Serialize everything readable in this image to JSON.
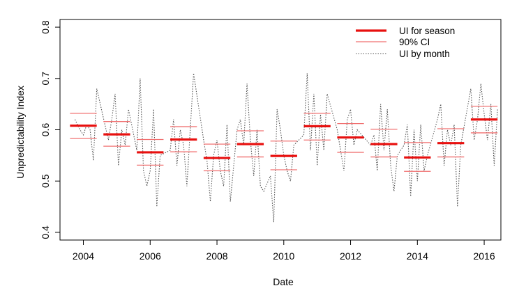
{
  "chart_data": {
    "type": "line",
    "title": "",
    "xlabel": "Date",
    "ylabel": "Unpredictability Index",
    "xlim": [
      2003.3,
      2016.5
    ],
    "ylim": [
      0.385,
      0.815
    ],
    "x_ticks": [
      2004,
      2006,
      2008,
      2010,
      2012,
      2014,
      2016
    ],
    "y_ticks": [
      0.4,
      0.5,
      0.6,
      0.7,
      0.8
    ],
    "legend": {
      "position": "top-right",
      "entries": [
        {
          "label": "UI for season",
          "style": "thick",
          "color": "#e8100f"
        },
        {
          "label": "90% CI",
          "style": "thin",
          "color": "#f07070"
        },
        {
          "label": "UI by month",
          "style": "dotted",
          "color": "#555555"
        }
      ]
    },
    "seasons": [
      {
        "start": 2003.6,
        "end": 2004.4,
        "ui": 0.608,
        "ci_low": 0.583,
        "ci_high": 0.632
      },
      {
        "start": 2004.6,
        "end": 2005.4,
        "ui": 0.591,
        "ci_low": 0.568,
        "ci_high": 0.616
      },
      {
        "start": 2005.6,
        "end": 2006.4,
        "ui": 0.556,
        "ci_low": 0.531,
        "ci_high": 0.581
      },
      {
        "start": 2006.6,
        "end": 2007.4,
        "ui": 0.581,
        "ci_low": 0.557,
        "ci_high": 0.606
      },
      {
        "start": 2007.6,
        "end": 2008.4,
        "ui": 0.545,
        "ci_low": 0.52,
        "ci_high": 0.572
      },
      {
        "start": 2008.6,
        "end": 2009.4,
        "ui": 0.572,
        "ci_low": 0.547,
        "ci_high": 0.598
      },
      {
        "start": 2009.6,
        "end": 2010.4,
        "ui": 0.549,
        "ci_low": 0.522,
        "ci_high": 0.578
      },
      {
        "start": 2010.6,
        "end": 2011.4,
        "ui": 0.607,
        "ci_low": 0.58,
        "ci_high": 0.632
      },
      {
        "start": 2011.6,
        "end": 2012.4,
        "ui": 0.585,
        "ci_low": 0.556,
        "ci_high": 0.612
      },
      {
        "start": 2012.6,
        "end": 2013.4,
        "ui": 0.572,
        "ci_low": 0.547,
        "ci_high": 0.601
      },
      {
        "start": 2013.6,
        "end": 2014.4,
        "ui": 0.546,
        "ci_low": 0.519,
        "ci_high": 0.575
      },
      {
        "start": 2014.6,
        "end": 2015.4,
        "ui": 0.574,
        "ci_low": 0.547,
        "ci_high": 0.602
      },
      {
        "start": 2015.6,
        "end": 2016.4,
        "ui": 0.62,
        "ci_low": 0.594,
        "ci_high": 0.646
      }
    ],
    "monthly": [
      [
        2003.75,
        0.62
      ],
      [
        2003.9,
        0.6
      ],
      [
        2004.0,
        0.59
      ],
      [
        2004.1,
        0.61
      ],
      [
        2004.2,
        0.6
      ],
      [
        2004.3,
        0.54
      ],
      [
        2004.4,
        0.68
      ],
      [
        2004.75,
        0.58
      ],
      [
        2004.85,
        0.62
      ],
      [
        2004.95,
        0.67
      ],
      [
        2005.05,
        0.53
      ],
      [
        2005.15,
        0.6
      ],
      [
        2005.25,
        0.57
      ],
      [
        2005.35,
        0.64
      ],
      [
        2005.6,
        0.56
      ],
      [
        2005.7,
        0.7
      ],
      [
        2005.8,
        0.52
      ],
      [
        2005.9,
        0.49
      ],
      [
        2006.0,
        0.52
      ],
      [
        2006.1,
        0.64
      ],
      [
        2006.2,
        0.45
      ],
      [
        2006.3,
        0.55
      ],
      [
        2006.6,
        0.56
      ],
      [
        2006.7,
        0.62
      ],
      [
        2006.8,
        0.53
      ],
      [
        2006.9,
        0.6
      ],
      [
        2007.0,
        0.57
      ],
      [
        2007.1,
        0.49
      ],
      [
        2007.2,
        0.6
      ],
      [
        2007.3,
        0.71
      ],
      [
        2007.6,
        0.58
      ],
      [
        2007.7,
        0.54
      ],
      [
        2007.8,
        0.46
      ],
      [
        2007.9,
        0.55
      ],
      [
        2008.0,
        0.58
      ],
      [
        2008.1,
        0.52
      ],
      [
        2008.2,
        0.49
      ],
      [
        2008.3,
        0.61
      ],
      [
        2008.4,
        0.46
      ],
      [
        2008.6,
        0.6
      ],
      [
        2008.7,
        0.62
      ],
      [
        2008.8,
        0.57
      ],
      [
        2008.9,
        0.69
      ],
      [
        2009.0,
        0.58
      ],
      [
        2009.1,
        0.51
      ],
      [
        2009.2,
        0.6
      ],
      [
        2009.3,
        0.49
      ],
      [
        2009.4,
        0.48
      ],
      [
        2009.6,
        0.51
      ],
      [
        2009.7,
        0.42
      ],
      [
        2009.8,
        0.64
      ],
      [
        2009.9,
        0.6
      ],
      [
        2010.0,
        0.55
      ],
      [
        2010.1,
        0.52
      ],
      [
        2010.2,
        0.5
      ],
      [
        2010.3,
        0.57
      ],
      [
        2010.6,
        0.59
      ],
      [
        2010.7,
        0.71
      ],
      [
        2010.8,
        0.56
      ],
      [
        2010.9,
        0.67
      ],
      [
        2011.0,
        0.53
      ],
      [
        2011.1,
        0.63
      ],
      [
        2011.2,
        0.56
      ],
      [
        2011.3,
        0.67
      ],
      [
        2011.6,
        0.6
      ],
      [
        2011.7,
        0.56
      ],
      [
        2011.8,
        0.52
      ],
      [
        2011.9,
        0.62
      ],
      [
        2012.0,
        0.64
      ],
      [
        2012.1,
        0.57
      ],
      [
        2012.2,
        0.6
      ],
      [
        2012.6,
        0.57
      ],
      [
        2012.7,
        0.59
      ],
      [
        2012.8,
        0.52
      ],
      [
        2012.9,
        0.65
      ],
      [
        2013.0,
        0.56
      ],
      [
        2013.1,
        0.64
      ],
      [
        2013.2,
        0.53
      ],
      [
        2013.3,
        0.48
      ],
      [
        2013.4,
        0.55
      ],
      [
        2013.6,
        0.57
      ],
      [
        2013.7,
        0.61
      ],
      [
        2013.8,
        0.47
      ],
      [
        2013.9,
        0.6
      ],
      [
        2014.0,
        0.5
      ],
      [
        2014.1,
        0.61
      ],
      [
        2014.2,
        0.52
      ],
      [
        2014.3,
        0.55
      ],
      [
        2014.6,
        0.62
      ],
      [
        2014.7,
        0.65
      ],
      [
        2014.8,
        0.53
      ],
      [
        2014.9,
        0.6
      ],
      [
        2015.0,
        0.57
      ],
      [
        2015.1,
        0.61
      ],
      [
        2015.2,
        0.45
      ],
      [
        2015.3,
        0.57
      ],
      [
        2015.6,
        0.68
      ],
      [
        2015.7,
        0.58
      ],
      [
        2015.8,
        0.62
      ],
      [
        2015.9,
        0.69
      ],
      [
        2016.0,
        0.63
      ],
      [
        2016.1,
        0.58
      ],
      [
        2016.2,
        0.65
      ],
      [
        2016.3,
        0.53
      ],
      [
        2016.4,
        0.64
      ]
    ]
  }
}
